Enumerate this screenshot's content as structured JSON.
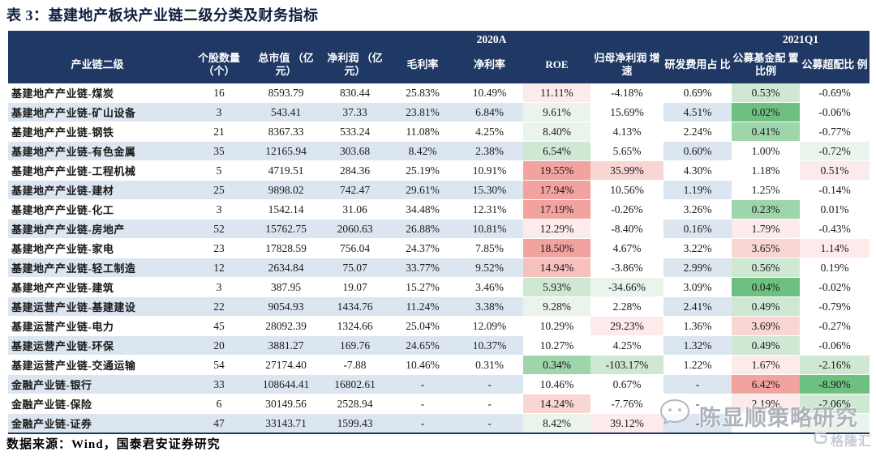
{
  "title": "表 3：基建地产板块产业链二级分类及财务指标",
  "source_note": "数据来源：Wind，国泰君安证券研究",
  "watermark": {
    "wechat_text": "陈显顺策略研究",
    "logo_text": "格隆汇"
  },
  "colors": {
    "header_bg": "#1f3864",
    "band_blue": "#dce6f1",
    "band_white": "#ffffff",
    "palette": {
      "r3": "#f2a3a0",
      "r2": "#f6c0bd",
      "r1": "#f9d5d3",
      "r0": "#fcebea",
      "g0": "#eaf4ec",
      "g1": "#cfe8d3",
      "g2": "#9ed5ab",
      "g3": "#6dc07f"
    }
  },
  "table": {
    "group_headers": [
      {
        "label": "",
        "span": 2
      },
      {
        "label": "2020A",
        "span": 7
      },
      {
        "label": "2021Q1",
        "span": 2
      }
    ],
    "columns": [
      "产业链二级",
      "个股数量 （个）",
      "总市值 （亿元）",
      "净利润 （亿元）",
      "毛利率",
      "净利率",
      "ROE",
      "归母净利润 增速",
      "研发费用占 比",
      "公募基金配 置比例",
      "公募超配比 例"
    ],
    "scale_columns": [
      6,
      7,
      9,
      10
    ],
    "rows": [
      {
        "name": "基建地产产业链-煤炭",
        "values": [
          "16",
          "8593.79",
          "830.44",
          "25.83%",
          "10.49%",
          "11.11%",
          "-4.18%",
          "0.69%",
          "0.53%",
          "-0.69%"
        ],
        "bg": {
          "6": "r0",
          "9": "g1"
        }
      },
      {
        "name": "基建地产产业链-矿山设备",
        "values": [
          "3",
          "543.41",
          "37.33",
          "23.81%",
          "6.84%",
          "9.61%",
          "15.69%",
          "4.51%",
          "0.02%",
          "-0.06%"
        ],
        "bg": {
          "6": "g0",
          "9": "g3"
        }
      },
      {
        "name": "基建地产产业链-钢铁",
        "values": [
          "21",
          "8367.33",
          "533.24",
          "11.08%",
          "4.25%",
          "8.40%",
          "4.13%",
          "2.24%",
          "0.41%",
          "-0.77%"
        ],
        "bg": {
          "6": "g0",
          "9": "g2"
        }
      },
      {
        "name": "基建地产产业链-有色金属",
        "values": [
          "35",
          "12165.94",
          "303.68",
          "8.42%",
          "2.38%",
          "6.54%",
          "5.65%",
          "0.60%",
          "1.00%",
          "-0.72%"
        ],
        "bg": {
          "6": "g1",
          "10": "g0"
        }
      },
      {
        "name": "基建地产产业链-工程机械",
        "values": [
          "5",
          "4719.51",
          "284.36",
          "25.19%",
          "10.91%",
          "19.55%",
          "35.99%",
          "4.30%",
          "1.18%",
          "0.51%"
        ],
        "bg": {
          "6": "r3",
          "7": "r1",
          "10": "r0"
        }
      },
      {
        "name": "基建地产产业链-建材",
        "values": [
          "25",
          "9898.02",
          "742.47",
          "29.61%",
          "15.30%",
          "17.94%",
          "10.56%",
          "1.19%",
          "1.25%",
          "-0.14%"
        ],
        "bg": {
          "6": "r3"
        }
      },
      {
        "name": "基建地产产业链-化工",
        "values": [
          "3",
          "1542.14",
          "31.06",
          "34.48%",
          "12.31%",
          "17.19%",
          "-0.26%",
          "3.26%",
          "0.23%",
          "0.01%"
        ],
        "bg": {
          "6": "r3",
          "9": "g2"
        }
      },
      {
        "name": "基建地产产业链-房地产",
        "values": [
          "52",
          "15762.75",
          "2060.63",
          "26.88%",
          "10.81%",
          "12.29%",
          "-8.40%",
          "0.16%",
          "1.79%",
          "-0.43%"
        ],
        "bg": {
          "6": "r0",
          "9": "r0"
        }
      },
      {
        "name": "基建地产产业链-家电",
        "values": [
          "23",
          "17828.59",
          "756.04",
          "24.37%",
          "7.85%",
          "18.50%",
          "4.67%",
          "3.22%",
          "3.65%",
          "1.14%"
        ],
        "bg": {
          "6": "r3",
          "9": "r1",
          "10": "r0"
        }
      },
      {
        "name": "基建地产产业链-轻工制造",
        "values": [
          "12",
          "2634.84",
          "75.07",
          "33.77%",
          "9.52%",
          "14.94%",
          "-3.86%",
          "2.99%",
          "0.56%",
          "0.19%"
        ],
        "bg": {
          "6": "r2",
          "9": "g1"
        }
      },
      {
        "name": "基建地产产业链-建筑",
        "values": [
          "3",
          "387.95",
          "19.07",
          "15.27%",
          "3.46%",
          "5.93%",
          "-34.66%",
          "3.09%",
          "0.04%",
          "-0.02%"
        ],
        "bg": {
          "6": "g1",
          "7": "g0",
          "9": "g3"
        }
      },
      {
        "name": "基建运营产业链-基建建设",
        "values": [
          "22",
          "9054.93",
          "1434.76",
          "11.24%",
          "3.38%",
          "9.28%",
          "2.28%",
          "2.41%",
          "0.49%",
          "-0.79%"
        ],
        "bg": {
          "6": "g0",
          "9": "g1"
        }
      },
      {
        "name": "基建运营产业链-电力",
        "values": [
          "45",
          "28092.39",
          "1324.66",
          "25.04%",
          "12.09%",
          "10.29%",
          "29.23%",
          "1.36%",
          "3.69%",
          "-0.27%"
        ],
        "bg": {
          "7": "r0",
          "9": "r1"
        }
      },
      {
        "name": "基建运营产业链-环保",
        "values": [
          "20",
          "3881.27",
          "169.76",
          "24.65%",
          "10.37%",
          "10.27%",
          "4.25%",
          "1.32%",
          "0.49%",
          "-0.06%"
        ],
        "bg": {
          "9": "g1"
        }
      },
      {
        "name": "基建运营产业链-交通运输",
        "values": [
          "54",
          "27174.40",
          "-7.88",
          "10.46%",
          "0.31%",
          "0.34%",
          "-103.17%",
          "1.22%",
          "1.67%",
          "-2.16%"
        ],
        "bg": {
          "6": "g2",
          "7": "g1",
          "9": "r0",
          "10": "g1"
        }
      },
      {
        "name": "金融产业链-银行",
        "values": [
          "33",
          "108644.41",
          "16802.61",
          "-",
          "-",
          "10.46%",
          "0.67%",
          "-",
          "6.42%",
          "-8.90%"
        ],
        "bg": {
          "9": "r3",
          "10": "g3"
        }
      },
      {
        "name": "金融产业链-保险",
        "values": [
          "6",
          "30149.56",
          "2528.94",
          "-",
          "-",
          "14.24%",
          "-7.76%",
          "-",
          "2.19%",
          "-2.06%"
        ],
        "bg": {
          "6": "r1",
          "9": "r0",
          "10": "g1"
        }
      },
      {
        "name": "金融产业链-证券",
        "values": [
          "47",
          "33143.71",
          "1599.43",
          "-",
          "-",
          "8.42%",
          "39.12%",
          "-",
          "",
          ""
        ],
        "bg": {
          "6": "g0",
          "7": "r0",
          "10": "g0"
        }
      }
    ]
  }
}
